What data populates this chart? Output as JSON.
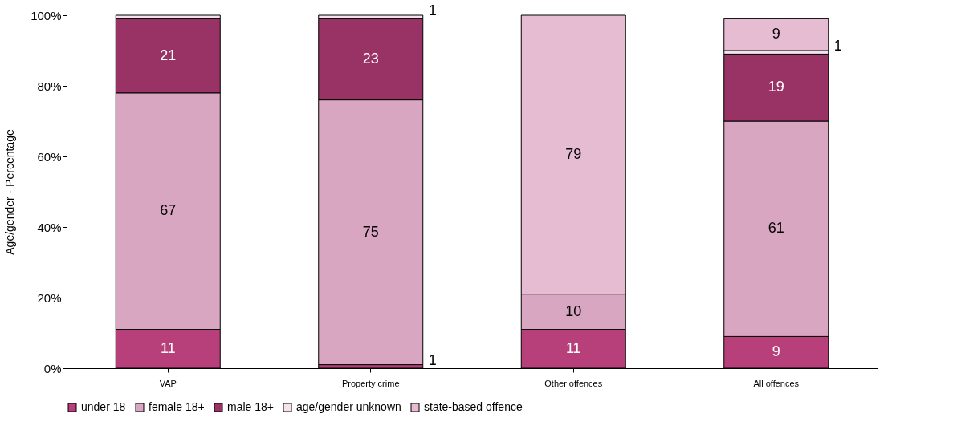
{
  "chart_data": {
    "type": "bar",
    "stacked": true,
    "ylabel": "Age/gender - Percentage",
    "categories": [
      "VAP",
      "Property crime",
      "Other offences",
      "All offences"
    ],
    "series": [
      {
        "name": "under 18",
        "color": "#b8407a",
        "values": [
          11,
          1,
          11,
          9
        ],
        "value_labels": [
          "11",
          "1",
          "11",
          "9"
        ]
      },
      {
        "name": "female 18+",
        "color": "#d9a6c2",
        "values": [
          67,
          75,
          10,
          61
        ],
        "value_labels": [
          "67",
          "75",
          "10",
          "61"
        ]
      },
      {
        "name": "male 18+",
        "color": "#993366",
        "values": [
          21,
          23,
          0,
          19
        ],
        "value_labels": [
          "21",
          "23",
          null,
          "19"
        ]
      },
      {
        "name": "age/gender unknown",
        "color": "#f3e3ec",
        "values": [
          1,
          1,
          0,
          1
        ],
        "value_labels": [
          null,
          "1",
          null,
          "1"
        ]
      },
      {
        "name": "state-based offence",
        "color": "#e6bcd3",
        "values": [
          0,
          0,
          79,
          9
        ],
        "value_labels": [
          null,
          null,
          "79",
          "9"
        ]
      }
    ],
    "ylim": [
      0,
      100
    ],
    "yticks": [
      {
        "value": 0,
        "label": "0%"
      },
      {
        "value": 20,
        "label": "20%"
      },
      {
        "value": 40,
        "label": "40%"
      },
      {
        "value": 60,
        "label": "60%"
      },
      {
        "value": 80,
        "label": "80%"
      },
      {
        "value": 100,
        "label": "100%"
      }
    ],
    "grid": false,
    "legend": "bottom"
  }
}
